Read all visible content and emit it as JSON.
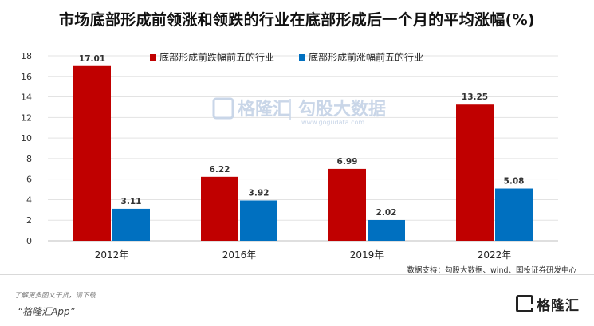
{
  "chart_data": {
    "type": "bar",
    "title": "市场底部形成前领涨和领跌的行业在底部形成后一个月的平均涨幅(%)",
    "categories": [
      "2012年",
      "2016年",
      "2019年",
      "2022年"
    ],
    "series": [
      {
        "name": "底部形成前跌幅前五的行业",
        "values": [
          17.01,
          6.22,
          6.99,
          13.25
        ],
        "color": "#c00000"
      },
      {
        "name": "底部形成前涨幅前五的行业",
        "values": [
          3.11,
          3.92,
          2.02,
          5.08
        ],
        "color": "#0070c0"
      }
    ],
    "ylim": [
      0,
      18
    ],
    "yticks": [
      0,
      2,
      4,
      6,
      8,
      10,
      12,
      14,
      16,
      18
    ],
    "xlabel": "",
    "ylabel": "",
    "grid": true,
    "legend": "top"
  },
  "source_note": "数据支持：勾股大数据、wind、国投证券研发中心",
  "footer": {
    "note": "了解更多图文干货，请下载",
    "app": "“格隆汇App”"
  },
  "watermark": {
    "brand": "格隆汇",
    "name": "勾股大数据",
    "url": "www.gogudata.com"
  },
  "brand": {
    "name": "格隆汇",
    "icon": "gelonghui-logo-icon"
  }
}
